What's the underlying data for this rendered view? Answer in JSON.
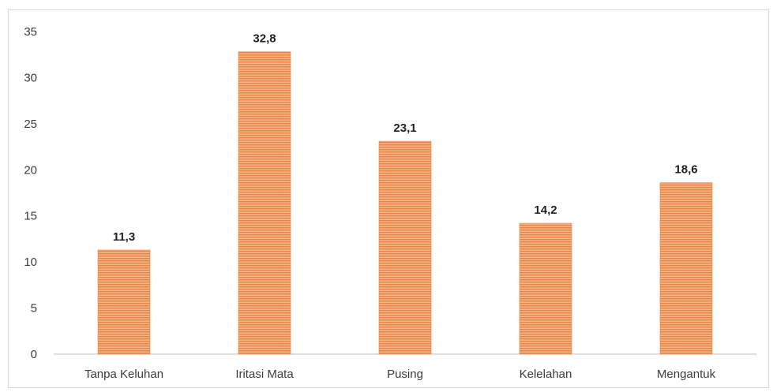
{
  "chart_data": {
    "type": "bar",
    "categories": [
      "Tanpa Keluhan",
      "Iritasi Mata",
      "Pusing",
      "Kelelahan",
      "Mengantuk"
    ],
    "values": [
      11.3,
      32.8,
      23.1,
      14.2,
      18.6
    ],
    "data_labels": [
      "11,3",
      "32,8",
      "23,1",
      "14,2",
      "18,6"
    ],
    "y_ticks": [
      0,
      5,
      10,
      15,
      20,
      25,
      30,
      35
    ],
    "ylim": [
      0,
      35
    ],
    "grid": false,
    "legend": "none",
    "bar_color": "#f0a070",
    "bar_stripe_color": "#e8843f",
    "axis_color": "#bfbfbf"
  }
}
